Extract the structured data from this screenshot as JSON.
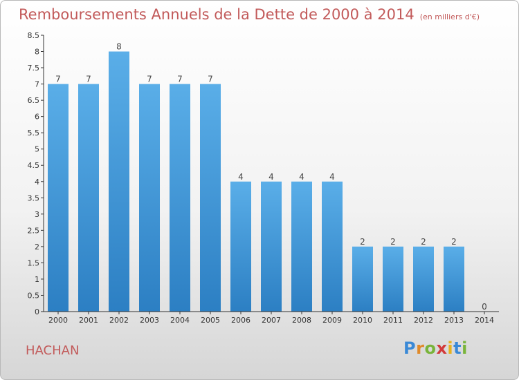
{
  "header": {
    "title": "Remboursements Annuels de la Dette de 2000 à 2014",
    "unit": "(en milliers d'€)"
  },
  "footer": {
    "commune": "HACHAN",
    "logo_text": "Proxiti"
  },
  "colors": {
    "bar_top": "#5aaee8",
    "bar_bottom": "#2c7fc3",
    "title": "#c25a5a"
  },
  "chart_data": {
    "type": "bar",
    "title": "Remboursements Annuels de la Dette de 2000 à 2014",
    "subtitle": "(en milliers d'€)",
    "xlabel": "",
    "ylabel": "",
    "ylim": [
      0,
      8.5
    ],
    "yticks": [
      0,
      0.5,
      1,
      1.5,
      2,
      2.5,
      3,
      3.5,
      4,
      4.5,
      5,
      5.5,
      6,
      6.5,
      7,
      7.5,
      8,
      8.5
    ],
    "grid": false,
    "categories": [
      "2000",
      "2001",
      "2002",
      "2003",
      "2004",
      "2005",
      "2006",
      "2007",
      "2008",
      "2009",
      "2010",
      "2011",
      "2012",
      "2013",
      "2014"
    ],
    "values": [
      7,
      7,
      8,
      7,
      7,
      7,
      4,
      4,
      4,
      4,
      2,
      2,
      2,
      2,
      0
    ]
  }
}
